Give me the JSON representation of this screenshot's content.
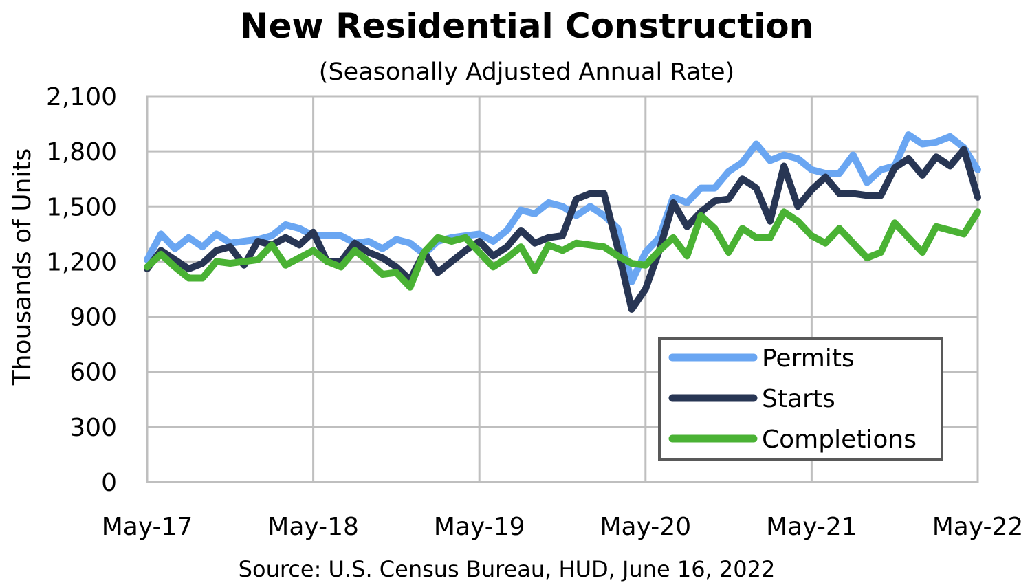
{
  "chart_data": {
    "type": "line",
    "title": "New Residential Construction",
    "subtitle": "(Seasonally Adjusted Annual Rate)",
    "ylabel": "Thousands of Units",
    "xlabel": "",
    "ylim": [
      0,
      2100
    ],
    "yticks": [
      "0",
      "300",
      "600",
      "900",
      "1,200",
      "1,500",
      "1,800",
      "2,100"
    ],
    "ytick_values": [
      0,
      300,
      600,
      900,
      1200,
      1500,
      1800,
      2100
    ],
    "xticks": [
      "May-17",
      "May-18",
      "May-19",
      "May-20",
      "May-21",
      "May-22"
    ],
    "x_start_label": "May-17",
    "x_end_label": "May-22",
    "grid": true,
    "legend_position": "bottom-right",
    "source": "Source:  U.S. Census Bureau, HUD, June 16, 2022",
    "series": [
      {
        "name": "Permits",
        "color": "#6aa6f2",
        "values": [
          1210,
          1350,
          1270,
          1330,
          1280,
          1350,
          1300,
          1310,
          1320,
          1340,
          1400,
          1380,
          1340,
          1340,
          1340,
          1300,
          1310,
          1270,
          1320,
          1300,
          1240,
          1310,
          1330,
          1340,
          1350,
          1310,
          1370,
          1480,
          1460,
          1520,
          1500,
          1450,
          1500,
          1450,
          1380,
          1090,
          1250,
          1330,
          1550,
          1520,
          1600,
          1600,
          1690,
          1740,
          1840,
          1750,
          1780,
          1760,
          1700,
          1680,
          1680,
          1780,
          1630,
          1700,
          1720,
          1890,
          1840,
          1850,
          1880,
          1820,
          1700
        ]
      },
      {
        "name": "Starts",
        "color": "#283654",
        "values": [
          1160,
          1260,
          1210,
          1160,
          1190,
          1260,
          1280,
          1180,
          1310,
          1290,
          1330,
          1290,
          1360,
          1200,
          1200,
          1300,
          1250,
          1220,
          1170,
          1100,
          1250,
          1140,
          1200,
          1260,
          1310,
          1230,
          1280,
          1370,
          1300,
          1330,
          1340,
          1540,
          1570,
          1570,
          1270,
          940,
          1050,
          1260,
          1520,
          1390,
          1470,
          1530,
          1540,
          1650,
          1600,
          1420,
          1720,
          1500,
          1590,
          1660,
          1570,
          1570,
          1560,
          1560,
          1710,
          1760,
          1670,
          1770,
          1720,
          1810,
          1550
        ]
      },
      {
        "name": "Completions",
        "color": "#4ab234",
        "values": [
          1170,
          1240,
          1170,
          1110,
          1110,
          1200,
          1190,
          1200,
          1210,
          1290,
          1180,
          1220,
          1260,
          1200,
          1170,
          1260,
          1200,
          1130,
          1140,
          1060,
          1250,
          1330,
          1310,
          1330,
          1250,
          1170,
          1220,
          1280,
          1150,
          1290,
          1260,
          1300,
          1290,
          1280,
          1230,
          1190,
          1180,
          1260,
          1330,
          1230,
          1450,
          1380,
          1250,
          1380,
          1330,
          1330,
          1470,
          1420,
          1340,
          1300,
          1380,
          1300,
          1220,
          1250,
          1410,
          1330,
          1250,
          1390,
          1370,
          1350,
          1470
        ]
      }
    ]
  }
}
